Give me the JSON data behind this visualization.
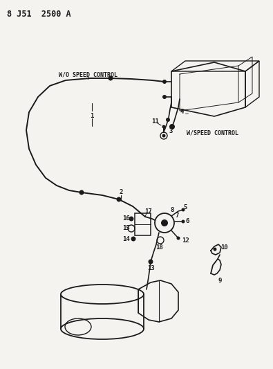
{
  "title": "8 J51  2500 A",
  "bg_color": "#f5f3ef",
  "line_color": "#1a1a1a",
  "label_wo_speed": "W/O SPEED CONTROL",
  "label_w_speed": "W/SPEED CONTROL",
  "figsize": [
    3.95,
    5.33
  ],
  "dpi": 100
}
